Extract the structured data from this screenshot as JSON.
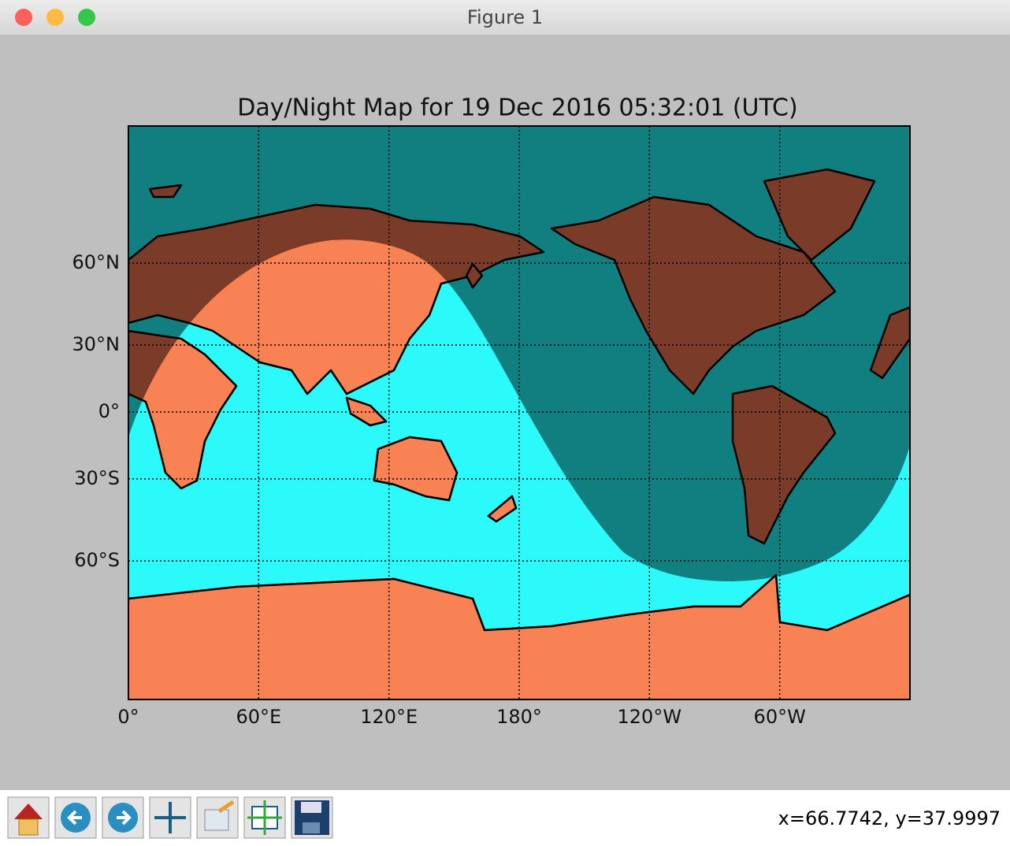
{
  "window": {
    "title": "Figure 1"
  },
  "figure": {
    "title": "Day/Night Map for 19 Dec 2016 05:32:01 (UTC)",
    "x_tick_labels": [
      "0°",
      "60°E",
      "120°E",
      "180°",
      "120°W",
      "60°W"
    ],
    "y_tick_labels": [
      "60°N",
      "30°N",
      "0°",
      "30°S",
      "60°S"
    ]
  },
  "status": {
    "coordinates": "x=66.7742, y=37.9997"
  }
}
